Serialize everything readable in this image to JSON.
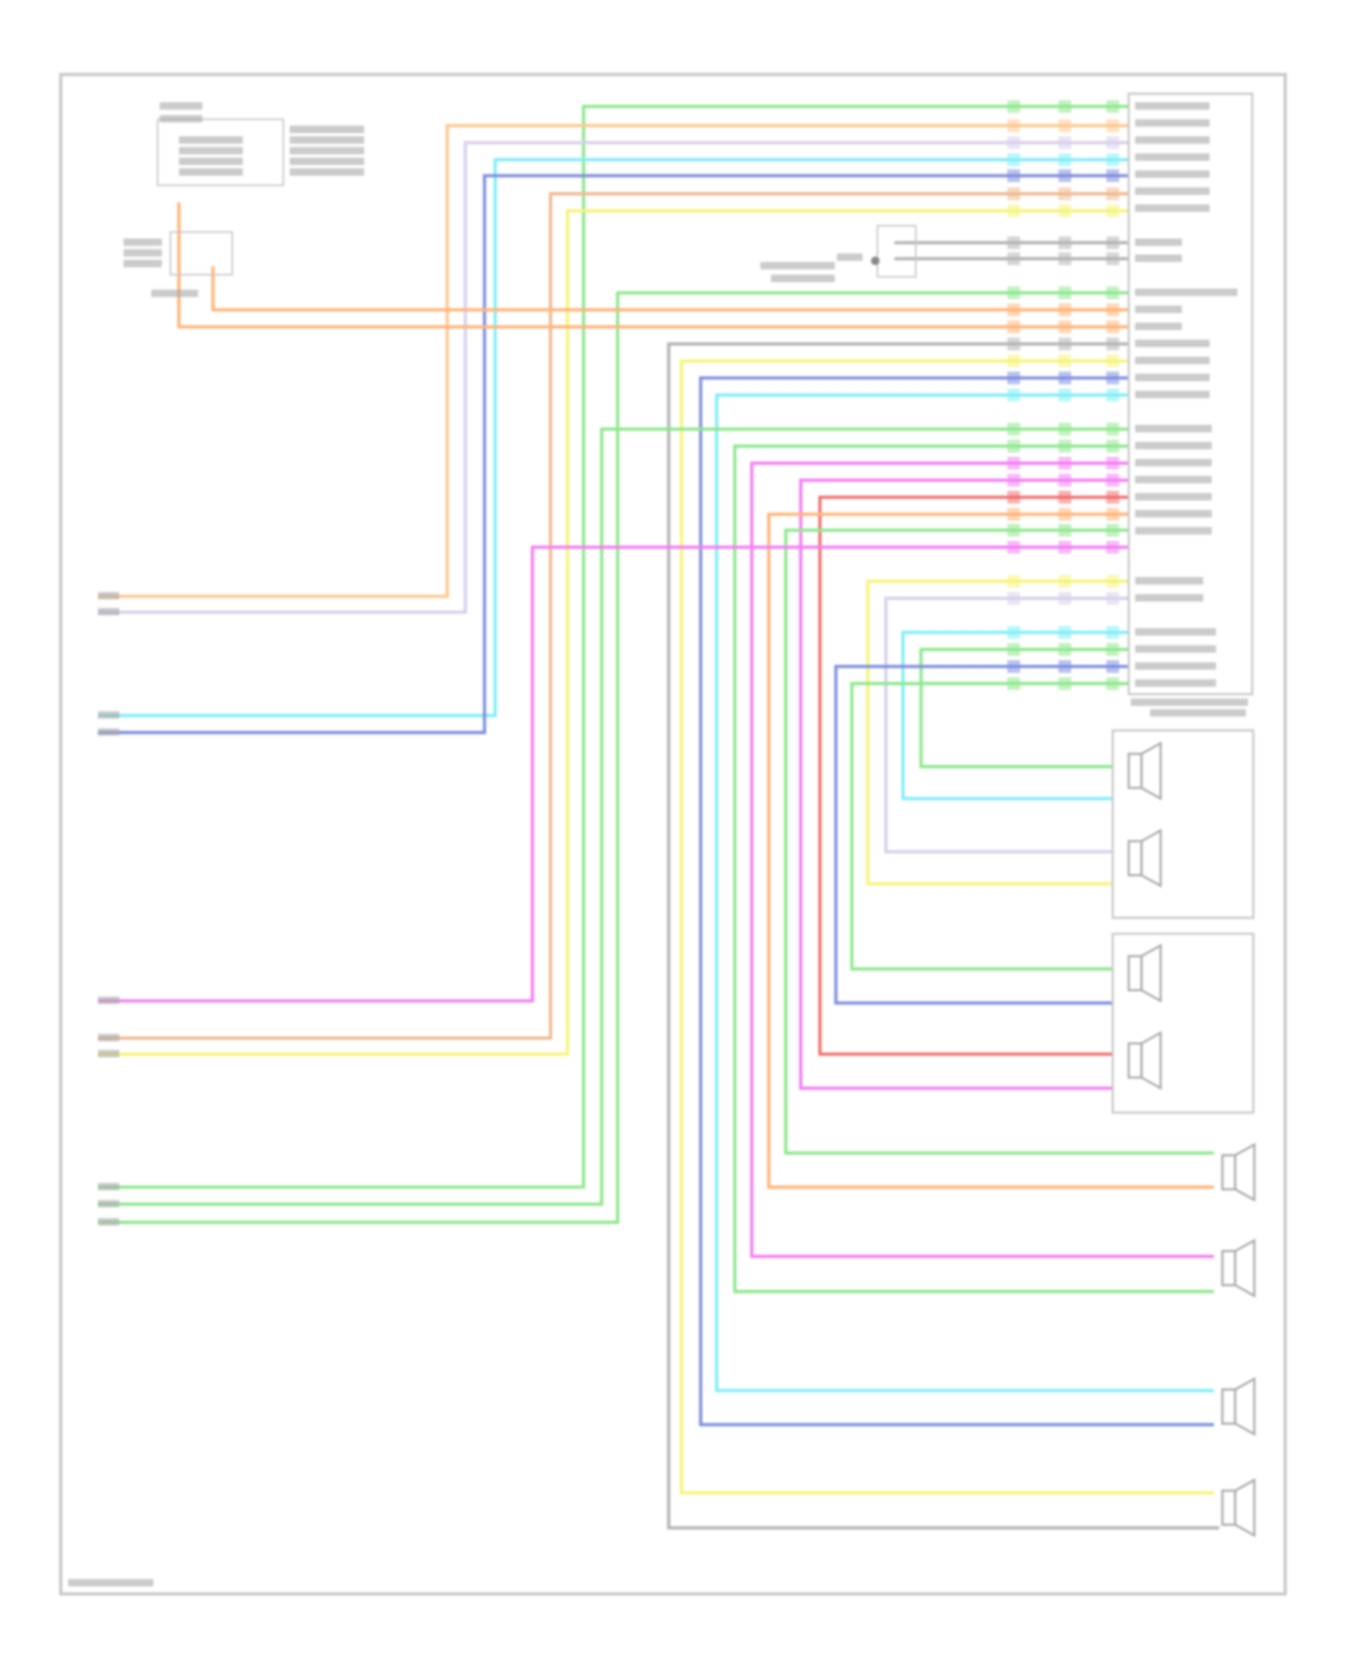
{
  "diagram": {
    "type": "wiring-diagram",
    "wire_colors": {
      "green": "#8ee88e",
      "orange": "#ffb478",
      "light_orange": "#ffc890",
      "lavender": "#d8d0ea",
      "cyan": "#80eef8",
      "blue": "#8090e0",
      "tan": "#f0b890",
      "yellow": "#f6f478",
      "gray": "#b4b4b4",
      "magenta": "#f47ef4",
      "red": "#f27070"
    },
    "frame_color": "#c8c8c8",
    "label_color": "#9a9a9a"
  }
}
